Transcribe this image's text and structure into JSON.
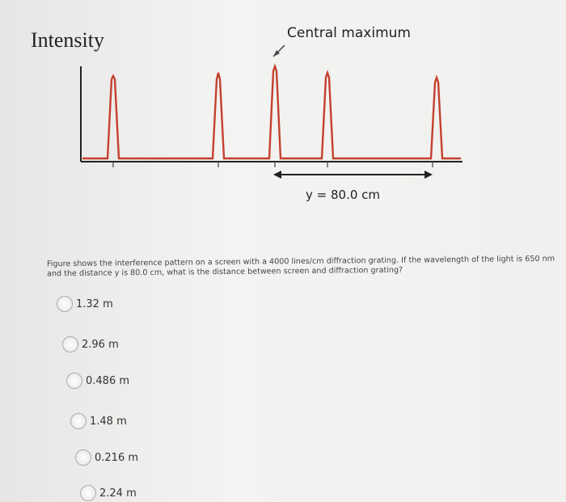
{
  "figure": {
    "y_axis_label": "Intensity",
    "annotation": "Central maximum",
    "distance_label": "y = 80.0 cm"
  },
  "question": {
    "text": "Figure shows the interference pattern on a screen with a 4000 lines/cm diffraction grating. If the wavelength of the light is 650 nm and the distance y is 80.0 cm, what is the distance between screen and diffraction grating?",
    "options": [
      "1.32 m",
      "2.96 m",
      "0.486 m",
      "1.48 m",
      "0.216 m",
      "2.24 m"
    ]
  }
}
